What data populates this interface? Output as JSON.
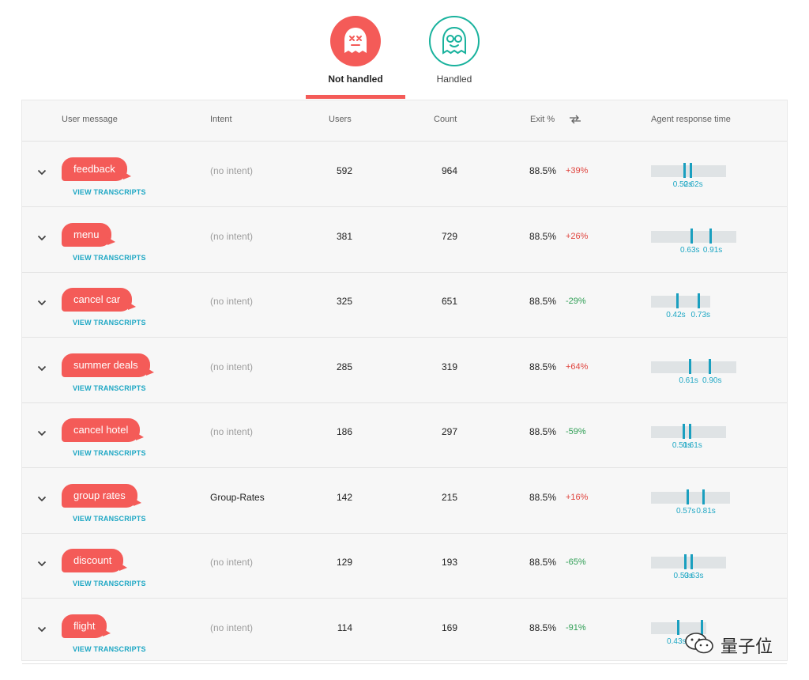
{
  "tabs": [
    {
      "label": "Not handled"
    },
    {
      "label": "Handled"
    }
  ],
  "columns": {
    "user_message": "User message",
    "intent": "Intent",
    "users": "Users",
    "count": "Count",
    "exit": "Exit %",
    "agent_response_time": "Agent response time"
  },
  "view_transcripts_label": "VIEW TRANSCRIPTS",
  "rows": [
    {
      "message": "feedback",
      "intent": "(no intent)",
      "users": "592",
      "count": "964",
      "exit": "88.5%",
      "delta": "+39%",
      "delta_dir": "up",
      "rt_low": "0.52s",
      "rt_high": "0.62s"
    },
    {
      "message": "menu",
      "intent": "(no intent)",
      "users": "381",
      "count": "729",
      "exit": "88.5%",
      "delta": "+26%",
      "delta_dir": "up",
      "rt_low": "0.63s",
      "rt_high": "0.91s"
    },
    {
      "message": "cancel car",
      "intent": "(no intent)",
      "users": "325",
      "count": "651",
      "exit": "88.5%",
      "delta": "-29%",
      "delta_dir": "down",
      "rt_low": "0.42s",
      "rt_high": "0.73s"
    },
    {
      "message": "summer deals",
      "intent": "(no intent)",
      "users": "285",
      "count": "319",
      "exit": "88.5%",
      "delta": "+64%",
      "delta_dir": "up",
      "rt_low": "0.61s",
      "rt_high": "0.90s"
    },
    {
      "message": "cancel hotel",
      "intent": "(no intent)",
      "users": "186",
      "count": "297",
      "exit": "88.5%",
      "delta": "-59%",
      "delta_dir": "down",
      "rt_low": "0.51s",
      "rt_high": "0.61s"
    },
    {
      "message": "group rates",
      "intent": "Group-Rates",
      "users": "142",
      "count": "215",
      "exit": "88.5%",
      "delta": "+16%",
      "delta_dir": "up",
      "rt_low": "0.57s",
      "rt_high": "0.81s"
    },
    {
      "message": "discount",
      "intent": "(no intent)",
      "users": "129",
      "count": "193",
      "exit": "88.5%",
      "delta": "-65%",
      "delta_dir": "down",
      "rt_low": "0.53s",
      "rt_high": "0.63s"
    },
    {
      "message": "flight",
      "intent": "(no intent)",
      "users": "114",
      "count": "169",
      "exit": "88.5%",
      "delta": "-91%",
      "delta_dir": "down",
      "rt_low": "0.43s",
      "rt_high": ""
    }
  ],
  "watermark": {
    "text": "量子位"
  },
  "colors": {
    "accent_red": "#f45b58",
    "teal": "#19b29d",
    "link": "#1ea7c4",
    "delta_up": "#e0453f",
    "delta_down": "#2e9e54"
  },
  "icons": {
    "not_handled": "dead-face-icon",
    "handled": "glasses-face-icon",
    "sort": "swap-arrows-icon",
    "expand": "chevron-down-icon"
  }
}
